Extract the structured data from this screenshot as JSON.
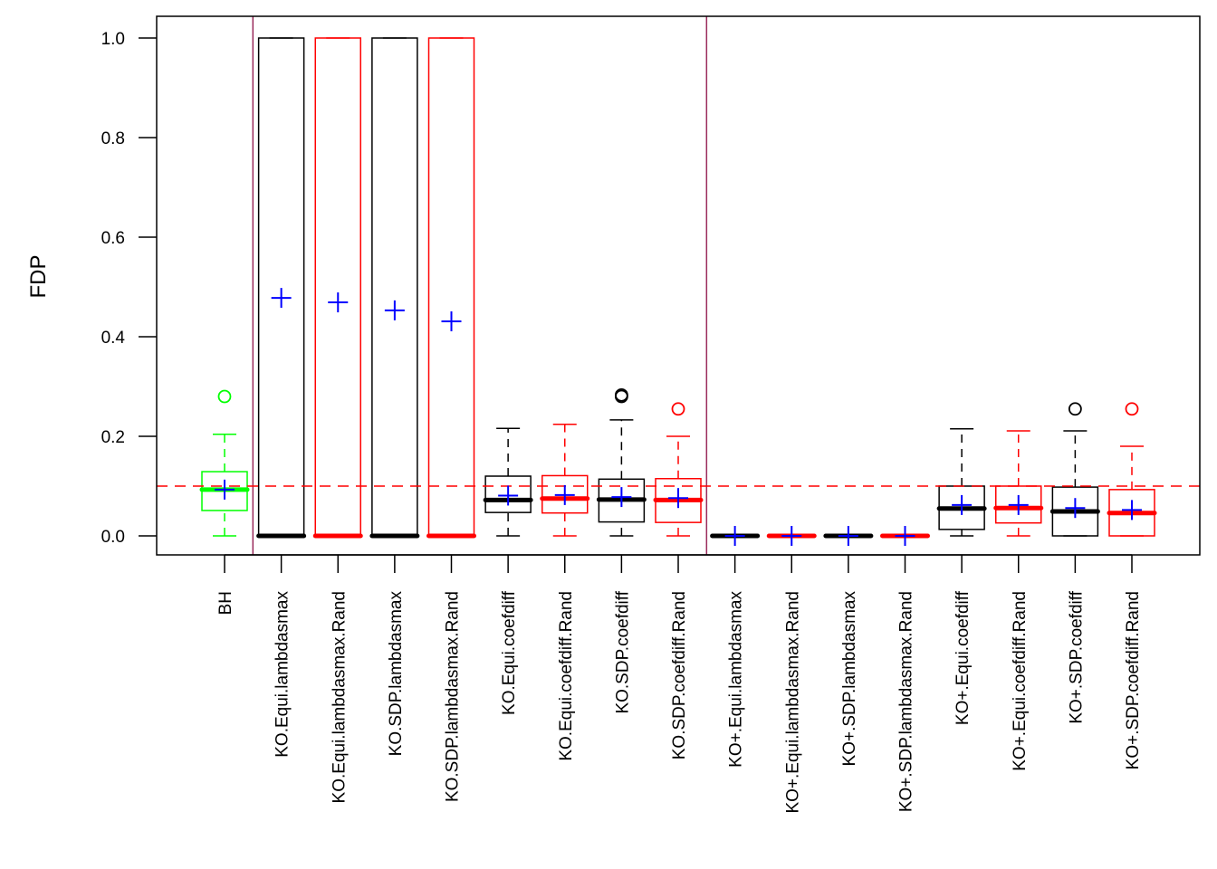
{
  "chart_data": {
    "type": "boxplot",
    "title": "",
    "xlabel": "",
    "ylabel": "FDP",
    "ylim": [
      -0.04,
      1.04
    ],
    "yticks": [
      0.0,
      0.2,
      0.4,
      0.6,
      0.8,
      1.0
    ],
    "ytick_labels": [
      "0.0",
      "0.2",
      "0.4",
      "0.6",
      "0.8",
      "1.0"
    ],
    "grid": false,
    "reference_line": {
      "y": 0.1,
      "color": "#ff0000",
      "style": "dashed"
    },
    "group_separators_after_index": [
      0,
      8
    ],
    "separator_color": "#9b2c5c",
    "mean_marker_color": "#0000ff",
    "colors": {
      "black": "#000000",
      "red": "#ff0000",
      "green": "#00ff00"
    },
    "series": [
      {
        "name": "BH",
        "color": "#00ff00",
        "whisker_low": 0.0,
        "q1": 0.051,
        "median": 0.093,
        "q3": 0.129,
        "whisker_high": 0.204,
        "mean": 0.093,
        "outliers": [
          0.28
        ]
      },
      {
        "name": "KO.Equi.lambdasmax",
        "color": "#000000",
        "whisker_low": 0.0,
        "q1": 0.0,
        "median": 0.0,
        "q3": 1.0,
        "whisker_high": 1.0,
        "mean": 0.478,
        "outliers": []
      },
      {
        "name": "KO.Equi.lambdasmax.Rand",
        "color": "#ff0000",
        "whisker_low": 0.0,
        "q1": 0.0,
        "median": 0.0,
        "q3": 1.0,
        "whisker_high": 1.0,
        "mean": 0.469,
        "outliers": []
      },
      {
        "name": "KO.SDP.lambdasmax",
        "color": "#000000",
        "whisker_low": 0.0,
        "q1": 0.0,
        "median": 0.0,
        "q3": 1.0,
        "whisker_high": 1.0,
        "mean": 0.453,
        "outliers": []
      },
      {
        "name": "KO.SDP.lambdasmax.Rand",
        "color": "#ff0000",
        "whisker_low": 0.0,
        "q1": 0.0,
        "median": 0.0,
        "q3": 1.0,
        "whisker_high": 1.0,
        "mean": 0.431,
        "outliers": []
      },
      {
        "name": "KO.Equi.coefdiff",
        "color": "#000000",
        "whisker_low": 0.0,
        "q1": 0.047,
        "median": 0.072,
        "q3": 0.12,
        "whisker_high": 0.216,
        "mean": 0.081,
        "outliers": []
      },
      {
        "name": "KO.Equi.coefdiff.Rand",
        "color": "#ff0000",
        "whisker_low": 0.0,
        "q1": 0.046,
        "median": 0.075,
        "q3": 0.121,
        "whisker_high": 0.224,
        "mean": 0.082,
        "outliers": []
      },
      {
        "name": "KO.SDP.coefdiff",
        "color": "#000000",
        "whisker_low": 0.0,
        "q1": 0.028,
        "median": 0.073,
        "q3": 0.114,
        "whisker_high": 0.233,
        "mean": 0.078,
        "outliers": [
          0.28,
          0.283
        ]
      },
      {
        "name": "KO.SDP.coefdiff.Rand",
        "color": "#ff0000",
        "whisker_low": 0.0,
        "q1": 0.027,
        "median": 0.072,
        "q3": 0.115,
        "whisker_high": 0.2,
        "mean": 0.076,
        "outliers": [
          0.255
        ]
      },
      {
        "name": "KO+.Equi.lambdasmax",
        "color": "#000000",
        "whisker_low": 0.0,
        "q1": 0.0,
        "median": 0.0,
        "q3": 0.0,
        "whisker_high": 0.0,
        "mean": 0.0,
        "outliers": []
      },
      {
        "name": "KO+.Equi.lambdasmax.Rand",
        "color": "#ff0000",
        "whisker_low": 0.0,
        "q1": 0.0,
        "median": 0.0,
        "q3": 0.0,
        "whisker_high": 0.0,
        "mean": 0.0,
        "outliers": []
      },
      {
        "name": "KO+.SDP.lambdasmax",
        "color": "#000000",
        "whisker_low": 0.0,
        "q1": 0.0,
        "median": 0.0,
        "q3": 0.0,
        "whisker_high": 0.0,
        "mean": 0.0,
        "outliers": []
      },
      {
        "name": "KO+.SDP.lambdasmax.Rand",
        "color": "#ff0000",
        "whisker_low": 0.0,
        "q1": 0.0,
        "median": 0.0,
        "q3": 0.0,
        "whisker_high": 0.0,
        "mean": 0.0,
        "outliers": []
      },
      {
        "name": "KO+.Equi.coefdiff",
        "color": "#000000",
        "whisker_low": 0.0,
        "q1": 0.013,
        "median": 0.055,
        "q3": 0.1,
        "whisker_high": 0.215,
        "mean": 0.062,
        "outliers": []
      },
      {
        "name": "KO+.Equi.coefdiff.Rand",
        "color": "#ff0000",
        "whisker_low": 0.0,
        "q1": 0.026,
        "median": 0.056,
        "q3": 0.1,
        "whisker_high": 0.211,
        "mean": 0.062,
        "outliers": []
      },
      {
        "name": "KO+.SDP.coefdiff",
        "color": "#000000",
        "whisker_low": 0.0,
        "q1": 0.0,
        "median": 0.049,
        "q3": 0.098,
        "whisker_high": 0.211,
        "mean": 0.056,
        "outliers": [
          0.255
        ]
      },
      {
        "name": "KO+.SDP.coefdiff.Rand",
        "color": "#ff0000",
        "whisker_low": 0.0,
        "q1": 0.0,
        "median": 0.046,
        "q3": 0.093,
        "whisker_high": 0.18,
        "mean": 0.052,
        "outliers": [
          0.255
        ]
      }
    ]
  }
}
